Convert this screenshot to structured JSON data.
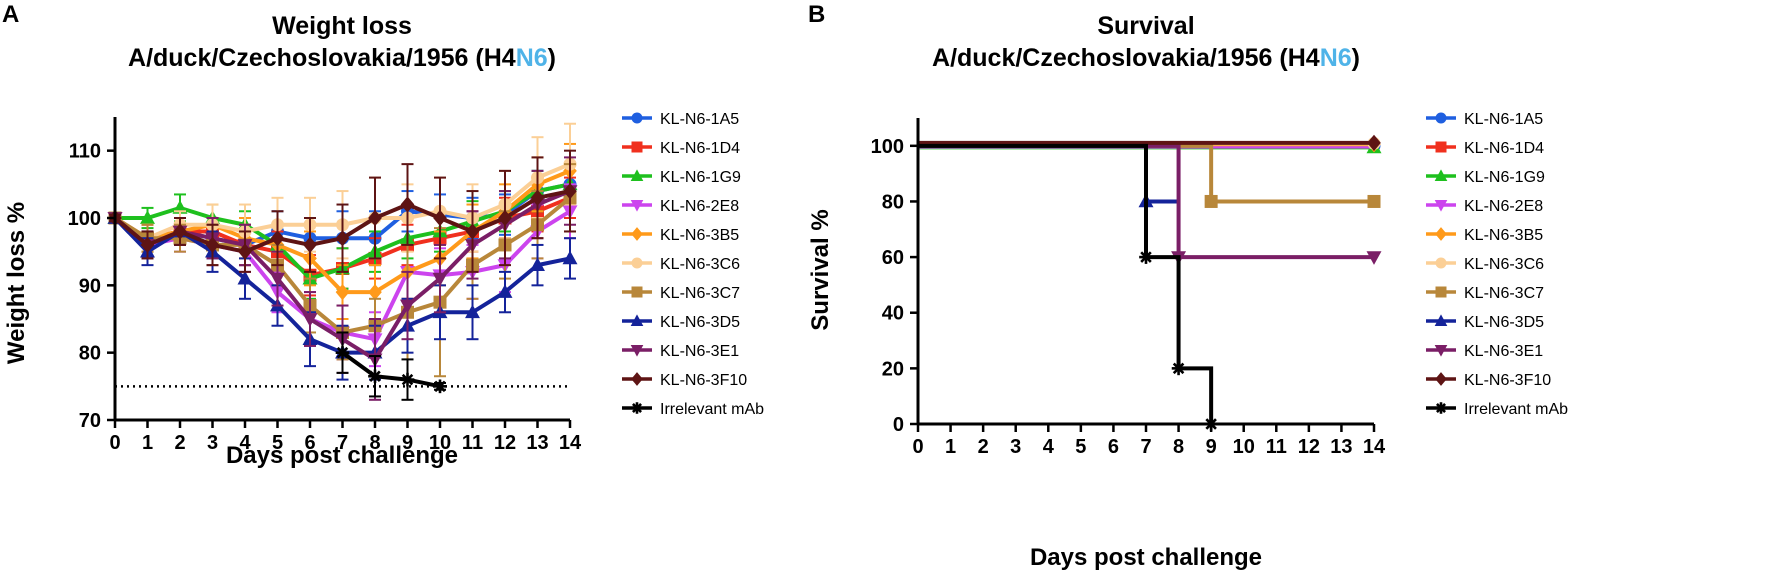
{
  "chart_data": [
    {
      "type": "line",
      "panel": "A",
      "title_line1": "Weight loss",
      "title_line2_prefix": "A/duck/Czechoslovakia/1956 (H4",
      "title_line2_highlight": "N6",
      "title_line2_suffix": ")",
      "highlight_color": "#4FB3E8",
      "xlabel": "Days post challenge",
      "ylabel": "Weight loss %",
      "xlim": [
        0,
        14
      ],
      "ylim": [
        70,
        115
      ],
      "xticks": [
        0,
        1,
        2,
        3,
        4,
        5,
        6,
        7,
        8,
        9,
        10,
        11,
        12,
        13,
        14
      ],
      "yticks": [
        70,
        80,
        90,
        100,
        110
      ],
      "threshold": 75,
      "series": [
        {
          "name": "KL-N6-1A5",
          "color": "#1F5FE0",
          "marker": "circle",
          "x": [
            0,
            1,
            2,
            3,
            4,
            5,
            6,
            7,
            8,
            9,
            10,
            11,
            12,
            13,
            14
          ],
          "values": [
            100,
            96,
            98,
            97,
            96,
            98,
            97,
            97,
            97,
            101,
            100.5,
            100,
            100.5,
            104,
            105
          ],
          "err": [
            0.5,
            2,
            2,
            3,
            3,
            3,
            3,
            4,
            4,
            3,
            3,
            3,
            3,
            3,
            3
          ]
        },
        {
          "name": "KL-N6-1D4",
          "color": "#F0301E",
          "marker": "square",
          "x": [
            0,
            1,
            2,
            3,
            4,
            5,
            6,
            7,
            8,
            9,
            10,
            11,
            12,
            13,
            14
          ],
          "values": [
            100,
            97,
            98,
            98,
            96,
            95,
            91.5,
            92.5,
            94,
            96,
            97,
            98,
            100,
            101,
            103
          ],
          "err": [
            0.5,
            2,
            2,
            2,
            3,
            3,
            3,
            3,
            3,
            3,
            3,
            3,
            3,
            3,
            3
          ]
        },
        {
          "name": "KL-N6-1G9",
          "color": "#1EC01E",
          "marker": "triangle-up",
          "x": [
            0,
            1,
            2,
            3,
            4,
            5,
            6,
            7,
            8,
            9,
            10,
            11,
            12,
            13,
            14
          ],
          "values": [
            100,
            100,
            101.5,
            100,
            99,
            96,
            91,
            92.5,
            95,
            97,
            98,
            99.5,
            101,
            104,
            105
          ],
          "err": [
            0.5,
            1.5,
            2,
            2,
            2,
            3,
            3,
            3,
            3,
            3,
            3,
            3,
            3,
            3,
            3
          ]
        },
        {
          "name": "KL-N6-2E8",
          "color": "#CC44EE",
          "marker": "triangle-down",
          "x": [
            0,
            1,
            2,
            3,
            4,
            5,
            6,
            7,
            8,
            9,
            10,
            11,
            12,
            13,
            14
          ],
          "values": [
            100,
            96,
            97,
            96,
            95,
            89,
            85,
            83,
            82,
            92,
            91.5,
            92,
            93,
            98,
            101
          ],
          "err": [
            0.5,
            2,
            2,
            3,
            3,
            3,
            4,
            4,
            4,
            4,
            4,
            4,
            4,
            4,
            4
          ]
        },
        {
          "name": "KL-N6-3B5",
          "color": "#FF9A1A",
          "marker": "diamond",
          "x": [
            0,
            1,
            2,
            3,
            4,
            5,
            6,
            7,
            8,
            9,
            10,
            11,
            12,
            13,
            14
          ],
          "values": [
            100,
            97,
            98,
            99,
            97,
            96,
            94,
            89,
            89,
            92,
            94,
            98,
            101,
            105,
            107
          ],
          "err": [
            0.5,
            2,
            2,
            3,
            3,
            3,
            4,
            4,
            4,
            4,
            4,
            4,
            4,
            4,
            4
          ]
        },
        {
          "name": "KL-N6-3C6",
          "color": "#FBCF96",
          "marker": "circle",
          "x": [
            0,
            1,
            2,
            3,
            4,
            5,
            6,
            7,
            8,
            9,
            10,
            11,
            12,
            13,
            14
          ],
          "values": [
            100,
            97,
            99,
            99,
            98,
            99,
            99,
            99,
            100,
            100,
            101,
            100,
            102,
            106,
            108
          ],
          "err": [
            0.5,
            2,
            2,
            3,
            4,
            4,
            4,
            5,
            6,
            5,
            5,
            5,
            5,
            6,
            6
          ]
        },
        {
          "name": "KL-N6-3C7",
          "color": "#B8873A",
          "marker": "square",
          "x": [
            0,
            1,
            2,
            3,
            4,
            5,
            6,
            7,
            8,
            9,
            10,
            11,
            12,
            13,
            14
          ],
          "values": [
            100,
            97,
            97,
            96,
            96,
            93,
            87,
            83,
            84,
            86,
            87.5,
            93,
            96,
            99,
            103
          ],
          "err": [
            0.5,
            2,
            2,
            3,
            3,
            3,
            4,
            4,
            4,
            10,
            11,
            5,
            5,
            5,
            5
          ]
        },
        {
          "name": "KL-N6-3D5",
          "color": "#14239A",
          "marker": "triangle-up",
          "x": [
            0,
            1,
            2,
            3,
            4,
            5,
            6,
            7,
            8,
            9,
            10,
            11,
            12,
            13,
            14
          ],
          "values": [
            100,
            95,
            98,
            95,
            91,
            87,
            82,
            80,
            80,
            84,
            86,
            86,
            89,
            93,
            94
          ],
          "err": [
            0.5,
            2,
            2,
            3,
            3,
            3,
            4,
            4,
            4,
            4,
            4,
            4,
            3,
            3,
            3
          ]
        },
        {
          "name": "KL-N6-3E1",
          "color": "#7A1E66",
          "marker": "triangle-down",
          "x": [
            0,
            1,
            2,
            3,
            4,
            5,
            6,
            7,
            8,
            9,
            10,
            11,
            12,
            13,
            14
          ],
          "values": [
            100,
            96,
            98,
            97,
            96,
            91,
            85,
            82,
            79,
            87,
            91,
            96,
            99,
            102,
            104
          ],
          "err": [
            0.5,
            2,
            2,
            3,
            3,
            4,
            4,
            5,
            6,
            5,
            5,
            5,
            5,
            5,
            5
          ]
        },
        {
          "name": "KL-N6-3F10",
          "color": "#5E1414",
          "marker": "diamond",
          "x": [
            0,
            1,
            2,
            3,
            4,
            5,
            6,
            7,
            8,
            9,
            10,
            11,
            12,
            13,
            14
          ],
          "values": [
            100,
            96,
            98,
            96,
            95,
            97,
            96,
            97,
            100,
            102,
            100,
            98,
            100,
            103,
            104
          ],
          "err": [
            0.5,
            2,
            2,
            3,
            3,
            4,
            4,
            5,
            6,
            6,
            6,
            6,
            7,
            6,
            6
          ]
        },
        {
          "name": "Irrelevant mAb",
          "color": "#000000",
          "marker": "asterisk",
          "x": [
            7,
            8,
            9,
            10
          ],
          "values": [
            80,
            76.5,
            76,
            75
          ],
          "err": [
            3,
            3,
            3,
            0.5
          ]
        }
      ]
    },
    {
      "type": "line",
      "panel": "B",
      "step": true,
      "title_line1": "Survival",
      "title_line2_prefix": "A/duck/Czechoslovakia/1956 (H4",
      "title_line2_highlight": "N6",
      "title_line2_suffix": ")",
      "highlight_color": "#4FB3E8",
      "xlabel": "Days post challenge",
      "ylabel": "Survival %",
      "xlim": [
        0,
        14
      ],
      "ylim": [
        0,
        110
      ],
      "xticks": [
        0,
        1,
        2,
        3,
        4,
        5,
        6,
        7,
        8,
        9,
        10,
        11,
        12,
        13,
        14
      ],
      "yticks": [
        0,
        20,
        40,
        60,
        80,
        100
      ],
      "series": [
        {
          "name": "KL-N6-1A5",
          "color": "#1F5FE0",
          "marker": "circle",
          "offset": 0,
          "steps": [
            [
              0,
              100
            ],
            [
              14,
              100
            ]
          ],
          "markers": [
            [
              14,
              100
            ]
          ]
        },
        {
          "name": "KL-N6-1D4",
          "color": "#F0301E",
          "marker": "square",
          "offset": 0.8,
          "steps": [
            [
              0,
              100
            ],
            [
              14,
              100
            ]
          ],
          "markers": []
        },
        {
          "name": "KL-N6-1G9",
          "color": "#1EC01E",
          "marker": "triangle-up",
          "offset": -1.6,
          "steps": [
            [
              0,
              100
            ],
            [
              14,
              100
            ]
          ],
          "markers": [
            [
              14,
              100
            ]
          ]
        },
        {
          "name": "KL-N6-2E8",
          "color": "#CC44EE",
          "marker": "triangle-down",
          "offset": -0.8,
          "steps": [
            [
              0,
              100
            ],
            [
              14,
              100
            ]
          ],
          "markers": []
        },
        {
          "name": "KL-N6-3B5",
          "color": "#FF9A1A",
          "marker": "diamond",
          "offset": 1.6,
          "steps": [
            [
              0,
              100
            ],
            [
              14,
              100
            ]
          ],
          "markers": [
            [
              14,
              100
            ]
          ]
        },
        {
          "name": "KL-N6-3C6",
          "color": "#FBCF96",
          "marker": "circle",
          "offset": 2.4,
          "steps": [
            [
              0,
              100
            ],
            [
              14,
              100
            ]
          ],
          "markers": [
            [
              14,
              100
            ]
          ]
        },
        {
          "name": "KL-N6-3C7",
          "color": "#B8873A",
          "marker": "square",
          "offset": 0,
          "steps": [
            [
              0,
              100
            ],
            [
              9,
              100
            ],
            [
              9,
              80
            ],
            [
              14,
              80
            ]
          ],
          "markers": [
            [
              9,
              80
            ],
            [
              14,
              80
            ]
          ]
        },
        {
          "name": "KL-N6-3D5",
          "color": "#14239A",
          "marker": "triangle-up",
          "offset": 0,
          "steps": [
            [
              0,
              100
            ],
            [
              7,
              100
            ],
            [
              7,
              80
            ],
            [
              8,
              80
            ]
          ],
          "markers": [
            [
              7,
              80
            ]
          ]
        },
        {
          "name": "KL-N6-3E1",
          "color": "#7A1E66",
          "marker": "triangle-down",
          "offset": 0,
          "steps": [
            [
              0,
              100
            ],
            [
              8,
              100
            ],
            [
              8,
              60
            ],
            [
              14,
              60
            ]
          ],
          "markers": [
            [
              8,
              60
            ],
            [
              14,
              60
            ]
          ]
        },
        {
          "name": "KL-N6-3F10",
          "color": "#5E1414",
          "marker": "diamond",
          "offset": 3.0,
          "steps": [
            [
              0,
              100
            ],
            [
              14,
              100
            ]
          ],
          "markers": [
            [
              14,
              100
            ]
          ]
        },
        {
          "name": "Irrelevant mAb",
          "color": "#000000",
          "marker": "asterisk",
          "offset": 0,
          "steps": [
            [
              0,
              100
            ],
            [
              7,
              100
            ],
            [
              7,
              60
            ],
            [
              8,
              60
            ],
            [
              8,
              20
            ],
            [
              9,
              20
            ],
            [
              9,
              0
            ]
          ],
          "markers": [
            [
              7,
              60
            ],
            [
              8,
              20
            ],
            [
              9,
              0
            ]
          ]
        }
      ]
    }
  ]
}
